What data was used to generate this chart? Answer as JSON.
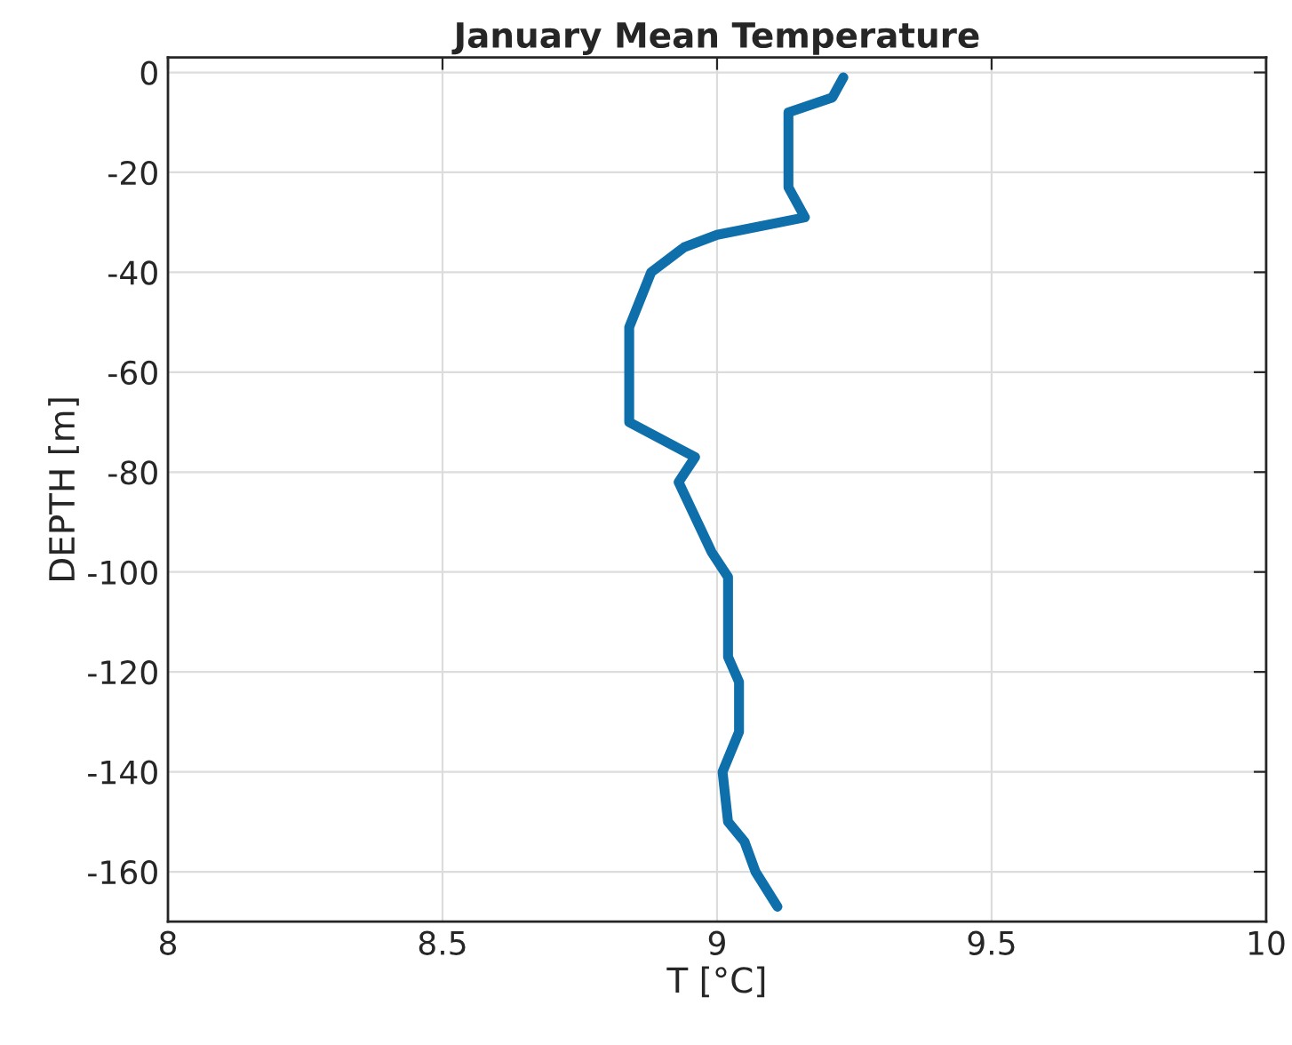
{
  "chart_data": {
    "type": "line",
    "title": "January Mean Temperature",
    "xlabel": "T [°C]",
    "ylabel": "DEPTH [m]",
    "x": [
      9.23,
      9.21,
      9.13,
      9.13,
      9.16,
      9.0,
      8.94,
      8.88,
      8.84,
      8.84,
      8.96,
      8.93,
      8.99,
      9.02,
      9.02,
      9.02,
      9.04,
      9.04,
      9.01,
      9.02,
      9.05,
      9.07,
      9.11
    ],
    "series": [
      {
        "color": "#0e6fab",
        "values": [
          -1,
          -5,
          -8,
          -23,
          -29,
          -32.5,
          -35,
          -40,
          -51,
          -70,
          -77,
          -82,
          -96,
          -101,
          -108,
          -117,
          -122,
          -132,
          -140,
          -150,
          -154,
          -160,
          -167
        ]
      }
    ],
    "xlim": [
      8,
      10
    ],
    "xticks": [
      8,
      8.5,
      9,
      9.5,
      10
    ],
    "ylim": [
      -170,
      3
    ],
    "yticks": [
      0,
      -20,
      -40,
      -60,
      -80,
      -100,
      -120,
      -140,
      -160
    ],
    "grid": true
  }
}
